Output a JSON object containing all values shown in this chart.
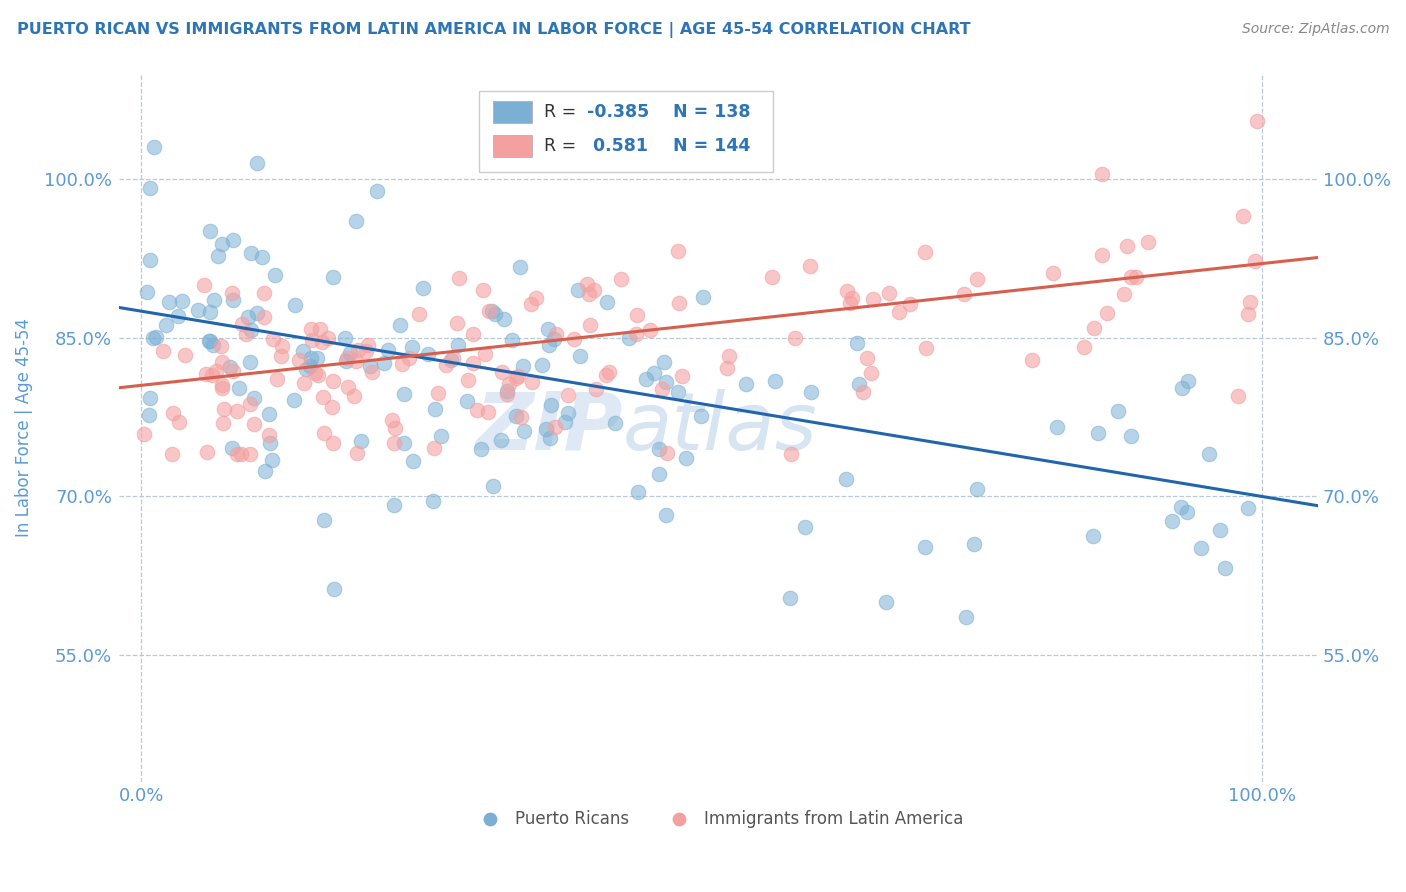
{
  "title": "PUERTO RICAN VS IMMIGRANTS FROM LATIN AMERICA IN LABOR FORCE | AGE 45-54 CORRELATION CHART",
  "source": "Source: ZipAtlas.com",
  "ylabel": "In Labor Force | Age 45-54",
  "xlim": [
    -0.02,
    1.05
  ],
  "ylim": [
    0.43,
    1.1
  ],
  "yticks": [
    0.55,
    0.7,
    0.85,
    1.0
  ],
  "ytick_labels": [
    "55.0%",
    "70.0%",
    "85.0%",
    "100.0%"
  ],
  "xtick_labels": [
    "0.0%",
    "100.0%"
  ],
  "legend_r_blue": "-0.385",
  "legend_n_blue": "138",
  "legend_r_pink": "0.581",
  "legend_n_pink": "144",
  "blue_color": "#7bafd4",
  "pink_color": "#f4a0a0",
  "blue_line_color": "#2166ac",
  "pink_line_color": "#d6604d",
  "watermark_zip": "ZIP",
  "watermark_atlas": "atlas",
  "background_color": "#ffffff",
  "grid_color": "#b8c9d9",
  "axis_label_color": "#5b9bd5",
  "title_color": "#2e75b6",
  "blue_slope": -0.175,
  "blue_intercept": 0.875,
  "pink_slope": 0.115,
  "pink_intercept": 0.805,
  "n_blue": 138,
  "n_pink": 144
}
